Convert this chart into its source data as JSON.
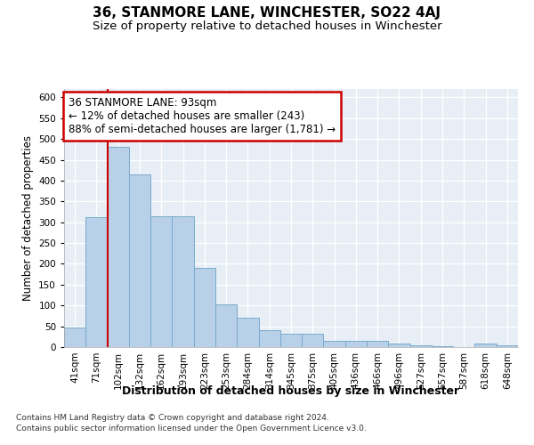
{
  "title": "36, STANMORE LANE, WINCHESTER, SO22 4AJ",
  "subtitle": "Size of property relative to detached houses in Winchester",
  "xlabel": "Distribution of detached houses by size in Winchester",
  "ylabel": "Number of detached properties",
  "footnote1": "Contains HM Land Registry data © Crown copyright and database right 2024.",
  "footnote2": "Contains public sector information licensed under the Open Government Licence v3.0.",
  "categories": [
    "41sqm",
    "71sqm",
    "102sqm",
    "132sqm",
    "162sqm",
    "193sqm",
    "223sqm",
    "253sqm",
    "284sqm",
    "314sqm",
    "345sqm",
    "375sqm",
    "405sqm",
    "436sqm",
    "466sqm",
    "496sqm",
    "527sqm",
    "557sqm",
    "587sqm",
    "618sqm",
    "648sqm"
  ],
  "values": [
    48,
    312,
    480,
    415,
    315,
    315,
    190,
    103,
    70,
    40,
    33,
    32,
    15,
    14,
    16,
    8,
    5,
    3,
    0,
    8,
    5
  ],
  "bar_color": "#b8d0e8",
  "bar_edge_color": "#7aaace",
  "bg_color": "#e8eef5",
  "grid_color": "#ffffff",
  "vline_color": "#cc0000",
  "annotation_text": "36 STANMORE LANE: 93sqm\n← 12% of detached houses are smaller (243)\n88% of semi-detached houses are larger (1,781) →",
  "annotation_box_color": "#cc0000",
  "ylim": [
    0,
    620
  ],
  "yticks": [
    0,
    50,
    100,
    150,
    200,
    250,
    300,
    350,
    400,
    450,
    500,
    550,
    600
  ],
  "title_fontsize": 11,
  "subtitle_fontsize": 9.5,
  "xlabel_fontsize": 9,
  "ylabel_fontsize": 8.5,
  "tick_fontsize": 7.5,
  "annotation_fontsize": 8.5,
  "footnote_fontsize": 6.5
}
